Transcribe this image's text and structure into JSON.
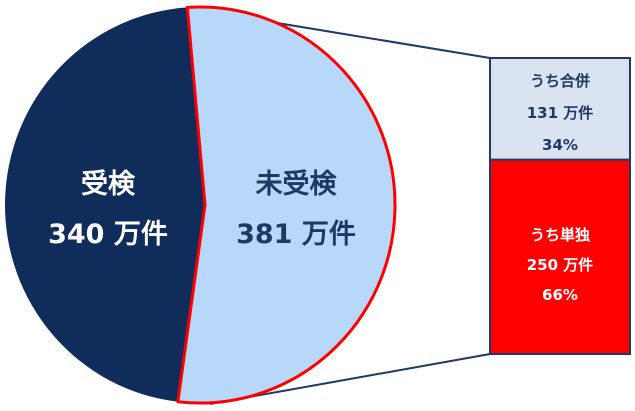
{
  "chart_data": {
    "type": "pie",
    "slices": [
      {
        "label": "受検",
        "value_label": "340 万件",
        "value": 340,
        "color": "#0f2c5a",
        "text_color": "#ffffff"
      },
      {
        "label": "未受検",
        "value_label": "381 万件",
        "value": 381,
        "color": "#b8d8fa",
        "text_color": "#1f3864",
        "edge_color": "#ff0000"
      }
    ],
    "breakdown": {
      "of": "未受検",
      "segments": [
        {
          "label": "うち合併",
          "value_label": "131 万件",
          "percent_label": "34%",
          "value": 131,
          "percent": 34,
          "color": "#dae3f0",
          "text_color": "#1f3864"
        },
        {
          "label": "うち単独",
          "value_label": "250 万件",
          "percent_label": "66%",
          "value": 250,
          "percent": 66,
          "color": "#ff0000",
          "text_color": "#ffffff"
        }
      ]
    },
    "connector_color": "#1f3864"
  }
}
